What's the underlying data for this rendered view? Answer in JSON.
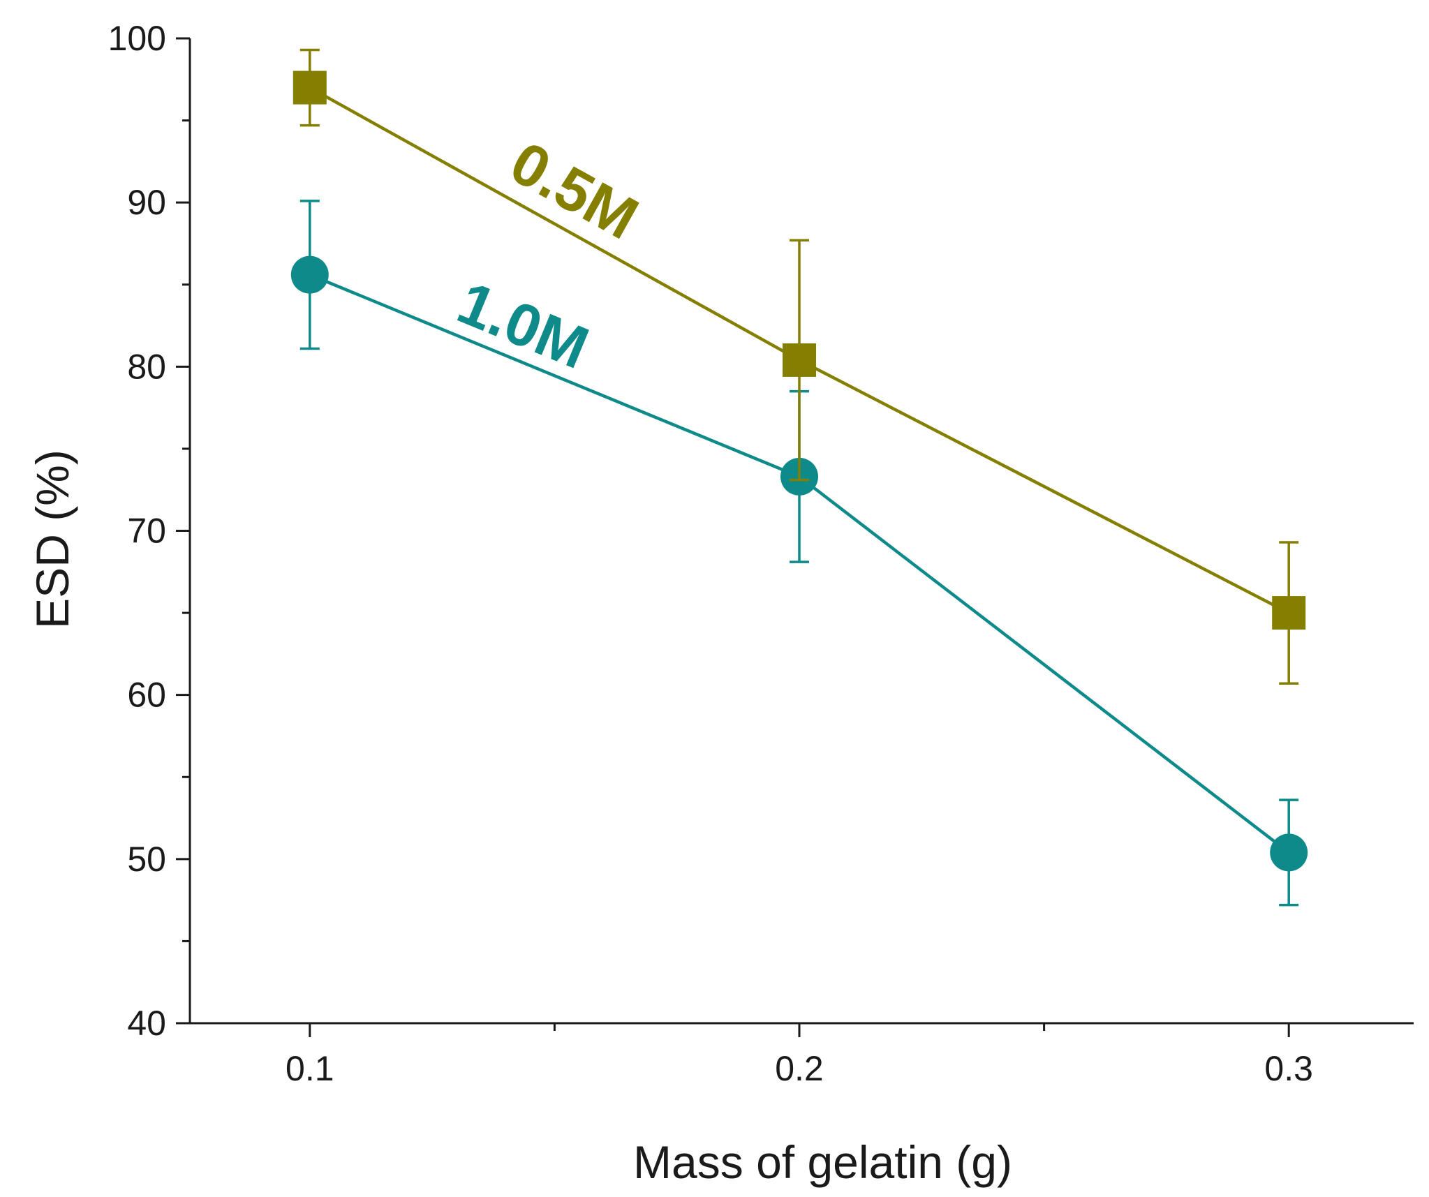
{
  "chart_data": {
    "type": "line",
    "title": "",
    "xlabel": "Mass of gelatin (g)",
    "ylabel": "ESD (%)",
    "x": [
      0.1,
      0.2,
      0.3
    ],
    "x_ticks": [
      "0.1",
      "0.2",
      "0.3"
    ],
    "xlim": [
      0.0755,
      0.3255
    ],
    "ylim": [
      40,
      100
    ],
    "y_ticks": [
      "40",
      "50",
      "60",
      "70",
      "80",
      "90",
      "100"
    ],
    "grid": false,
    "legend": "none",
    "series": [
      {
        "name": "0.5M",
        "label": "0.5M",
        "color": "#857f00",
        "marker": "square",
        "values": [
          97.0,
          80.4,
          65.0
        ],
        "error": [
          2.3,
          7.3,
          4.3
        ]
      },
      {
        "name": "1.0M",
        "label": "1.0M",
        "color": "#0f8a8a",
        "marker": "circle",
        "values": [
          85.6,
          73.3,
          50.4
        ],
        "error": [
          4.5,
          5.2,
          3.2
        ]
      }
    ]
  }
}
